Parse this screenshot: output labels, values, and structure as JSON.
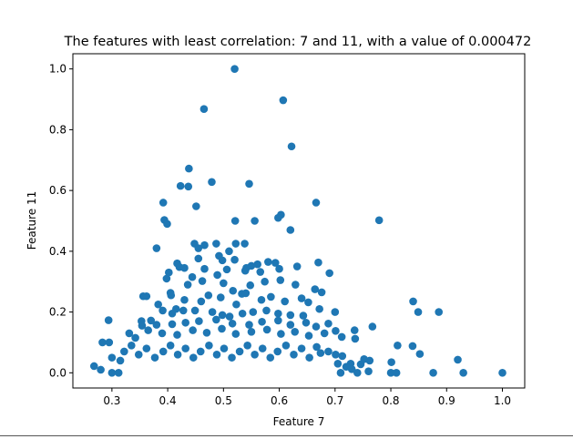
{
  "chart_data": {
    "type": "scatter",
    "title": "The features with least correlation: 7 and 11, with a value of 0.000472",
    "xlabel": "Feature 7",
    "ylabel": "Feature 11",
    "xlim": [
      0.23,
      1.04
    ],
    "ylim": [
      -0.05,
      1.05
    ],
    "xticks": [
      "0.3",
      "0.4",
      "0.5",
      "0.6",
      "0.7",
      "0.8",
      "0.9",
      "1.0"
    ],
    "yticks": [
      "0.0",
      "0.2",
      "0.4",
      "0.6",
      "0.8",
      "1.0"
    ],
    "grid": false,
    "point_color": "#1f77b4",
    "series": [
      {
        "points": [
          [
            0.52,
            1.0
          ],
          [
            0.607,
            0.897
          ],
          [
            0.465,
            0.868
          ],
          [
            0.622,
            0.745
          ],
          [
            0.438,
            0.672
          ],
          [
            0.479,
            0.628
          ],
          [
            0.546,
            0.622
          ],
          [
            0.423,
            0.615
          ],
          [
            0.437,
            0.613
          ],
          [
            0.666,
            0.56
          ],
          [
            0.392,
            0.56
          ],
          [
            0.451,
            0.548
          ],
          [
            0.603,
            0.52
          ],
          [
            0.598,
            0.51
          ],
          [
            0.394,
            0.503
          ],
          [
            0.521,
            0.5
          ],
          [
            0.556,
            0.5
          ],
          [
            0.779,
            0.502
          ],
          [
            0.399,
            0.49
          ],
          [
            0.62,
            0.47
          ],
          [
            0.448,
            0.425
          ],
          [
            0.487,
            0.425
          ],
          [
            0.522,
            0.425
          ],
          [
            0.538,
            0.425
          ],
          [
            0.466,
            0.42
          ],
          [
            0.38,
            0.41
          ],
          [
            0.455,
            0.41
          ],
          [
            0.51,
            0.4
          ],
          [
            0.492,
            0.385
          ],
          [
            0.455,
            0.376
          ],
          [
            0.52,
            0.372
          ],
          [
            0.498,
            0.37
          ],
          [
            0.417,
            0.36
          ],
          [
            0.58,
            0.365
          ],
          [
            0.593,
            0.362
          ],
          [
            0.67,
            0.363
          ],
          [
            0.561,
            0.357
          ],
          [
            0.55,
            0.352
          ],
          [
            0.541,
            0.345
          ],
          [
            0.6,
            0.342
          ],
          [
            0.632,
            0.35
          ],
          [
            0.466,
            0.342
          ],
          [
            0.421,
            0.348
          ],
          [
            0.43,
            0.345
          ],
          [
            0.506,
            0.34
          ],
          [
            0.539,
            0.336
          ],
          [
            0.398,
            0.31
          ],
          [
            0.402,
            0.33
          ],
          [
            0.444,
            0.315
          ],
          [
            0.489,
            0.322
          ],
          [
            0.566,
            0.332
          ],
          [
            0.602,
            0.305
          ],
          [
            0.69,
            0.328
          ],
          [
            0.362,
            0.252
          ],
          [
            0.356,
            0.252
          ],
          [
            0.405,
            0.263
          ],
          [
            0.436,
            0.29
          ],
          [
            0.462,
            0.302
          ],
          [
            0.5,
            0.295
          ],
          [
            0.517,
            0.27
          ],
          [
            0.533,
            0.26
          ],
          [
            0.548,
            0.288
          ],
          [
            0.574,
            0.3
          ],
          [
            0.629,
            0.29
          ],
          [
            0.664,
            0.275
          ],
          [
            0.676,
            0.265
          ],
          [
            0.64,
            0.245
          ],
          [
            0.652,
            0.232
          ],
          [
            0.61,
            0.235
          ],
          [
            0.585,
            0.25
          ],
          [
            0.568,
            0.24
          ],
          [
            0.54,
            0.262
          ],
          [
            0.523,
            0.225
          ],
          [
            0.495,
            0.248
          ],
          [
            0.473,
            0.255
          ],
          [
            0.46,
            0.235
          ],
          [
            0.43,
            0.24
          ],
          [
            0.406,
            0.255
          ],
          [
            0.383,
            0.225
          ],
          [
            0.84,
            0.235
          ],
          [
            0.849,
            0.2
          ],
          [
            0.886,
            0.2
          ],
          [
            0.7,
            0.2
          ],
          [
            0.672,
            0.21
          ],
          [
            0.391,
            0.205
          ],
          [
            0.408,
            0.195
          ],
          [
            0.415,
            0.21
          ],
          [
            0.428,
            0.205
          ],
          [
            0.449,
            0.205
          ],
          [
            0.48,
            0.2
          ],
          [
            0.498,
            0.19
          ],
          [
            0.511,
            0.185
          ],
          [
            0.534,
            0.195
          ],
          [
            0.553,
            0.2
          ],
          [
            0.577,
            0.205
          ],
          [
            0.598,
            0.195
          ],
          [
            0.62,
            0.19
          ],
          [
            0.643,
            0.188
          ],
          [
            0.353,
            0.17
          ],
          [
            0.37,
            0.172
          ],
          [
            0.294,
            0.173
          ],
          [
            0.354,
            0.155
          ],
          [
            0.38,
            0.158
          ],
          [
            0.408,
            0.16
          ],
          [
            0.432,
            0.165
          ],
          [
            0.456,
            0.17
          ],
          [
            0.487,
            0.175
          ],
          [
            0.516,
            0.162
          ],
          [
            0.546,
            0.158
          ],
          [
            0.569,
            0.168
          ],
          [
            0.598,
            0.172
          ],
          [
            0.62,
            0.158
          ],
          [
            0.648,
            0.165
          ],
          [
            0.666,
            0.152
          ],
          [
            0.688,
            0.162
          ],
          [
            0.767,
            0.152
          ],
          [
            0.701,
            0.138
          ],
          [
            0.735,
            0.14
          ],
          [
            0.283,
            0.1
          ],
          [
            0.295,
            0.1
          ],
          [
            0.331,
            0.13
          ],
          [
            0.342,
            0.115
          ],
          [
            0.365,
            0.14
          ],
          [
            0.39,
            0.13
          ],
          [
            0.417,
            0.125
          ],
          [
            0.445,
            0.14
          ],
          [
            0.47,
            0.132
          ],
          [
            0.497,
            0.145
          ],
          [
            0.522,
            0.128
          ],
          [
            0.55,
            0.135
          ],
          [
            0.578,
            0.142
          ],
          [
            0.603,
            0.128
          ],
          [
            0.628,
            0.135
          ],
          [
            0.653,
            0.122
          ],
          [
            0.681,
            0.13
          ],
          [
            0.712,
            0.118
          ],
          [
            0.736,
            0.112
          ],
          [
            0.812,
            0.09
          ],
          [
            0.839,
            0.088
          ],
          [
            0.852,
            0.062
          ],
          [
            0.92,
            0.043
          ],
          [
            0.801,
            0.035
          ],
          [
            0.762,
            0.04
          ],
          [
            0.752,
            0.045
          ],
          [
            0.746,
            0.028
          ],
          [
            0.728,
            0.03
          ],
          [
            0.713,
            0.055
          ],
          [
            0.701,
            0.06
          ],
          [
            0.688,
            0.07
          ],
          [
            0.674,
            0.065
          ],
          [
            0.3,
            0.05
          ],
          [
            0.315,
            0.04
          ],
          [
            0.322,
            0.07
          ],
          [
            0.335,
            0.09
          ],
          [
            0.348,
            0.06
          ],
          [
            0.362,
            0.08
          ],
          [
            0.377,
            0.05
          ],
          [
            0.392,
            0.07
          ],
          [
            0.405,
            0.09
          ],
          [
            0.418,
            0.06
          ],
          [
            0.432,
            0.08
          ],
          [
            0.446,
            0.05
          ],
          [
            0.459,
            0.07
          ],
          [
            0.474,
            0.09
          ],
          [
            0.488,
            0.06
          ],
          [
            0.501,
            0.08
          ],
          [
            0.515,
            0.05
          ],
          [
            0.529,
            0.07
          ],
          [
            0.543,
            0.09
          ],
          [
            0.556,
            0.06
          ],
          [
            0.57,
            0.08
          ],
          [
            0.584,
            0.05
          ],
          [
            0.597,
            0.07
          ],
          [
            0.612,
            0.09
          ],
          [
            0.626,
            0.06
          ],
          [
            0.64,
            0.08
          ],
          [
            0.654,
            0.05
          ],
          [
            0.667,
            0.085
          ],
          [
            0.268,
            0.022
          ],
          [
            0.28,
            0.01
          ],
          [
            0.3,
            0.0
          ],
          [
            0.312,
            0.0
          ],
          [
            0.8,
            0.0
          ],
          [
            0.81,
            0.0
          ],
          [
            0.876,
            0.0
          ],
          [
            0.93,
            0.0
          ],
          [
            1.0,
            0.0
          ],
          [
            0.71,
            0.0
          ],
          [
            0.74,
            0.0
          ],
          [
            0.76,
            0.005
          ],
          [
            0.73,
            0.012
          ],
          [
            0.72,
            0.02
          ],
          [
            0.705,
            0.03
          ]
        ]
      }
    ]
  }
}
